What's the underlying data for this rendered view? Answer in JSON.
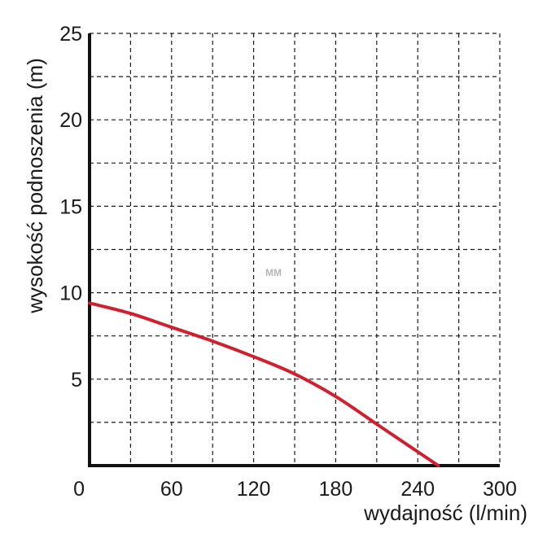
{
  "chart_data": {
    "type": "line",
    "xlabel": "wydajność (l/min)",
    "ylabel": "wysokość podnoszenia (m)",
    "xlim": [
      0,
      300
    ],
    "ylim": [
      0,
      25
    ],
    "x_ticks": [
      0,
      60,
      120,
      180,
      240,
      300
    ],
    "y_ticks": [
      5,
      10,
      15,
      20,
      25
    ],
    "grid": true,
    "grid_style": "dashed",
    "grid_x_step": 30,
    "grid_y_step": 2.5,
    "line_color": "#d0202e",
    "watermark": "MM",
    "series": [
      {
        "x": [
          0,
          30,
          60,
          90,
          120,
          150,
          180,
          210,
          240,
          255
        ],
        "y": [
          9.4,
          8.8,
          8.0,
          7.2,
          6.3,
          5.3,
          4.0,
          2.4,
          0.8,
          0
        ]
      }
    ]
  }
}
